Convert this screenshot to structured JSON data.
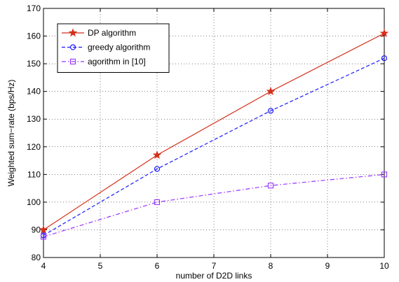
{
  "chart_data": {
    "type": "line",
    "xlabel": "number of D2D links",
    "ylabel": "Weighted sum−rate (bps/Hz)",
    "xlim": [
      4,
      10
    ],
    "ylim": [
      80,
      170
    ],
    "xticks": [
      4,
      5,
      6,
      7,
      8,
      9,
      10
    ],
    "yticks": [
      80,
      90,
      100,
      110,
      120,
      130,
      140,
      150,
      160,
      170
    ],
    "grid": true,
    "legend_position": "top-left",
    "x": [
      4,
      6,
      8,
      10
    ],
    "series": [
      {
        "name": "DP algorithm",
        "values": [
          90,
          117,
          140,
          161
        ],
        "color": "#d62f1a",
        "line_style": "solid",
        "marker": "star"
      },
      {
        "name": "greedy algorithm",
        "values": [
          88,
          112,
          133,
          152
        ],
        "color": "#1a1aff",
        "line_style": "dashed",
        "marker": "circle"
      },
      {
        "name": "agorithm in [10]",
        "values": [
          87.5,
          100,
          106,
          110
        ],
        "color": "#9933ff",
        "line_style": "dashdot",
        "marker": "square"
      }
    ]
  }
}
